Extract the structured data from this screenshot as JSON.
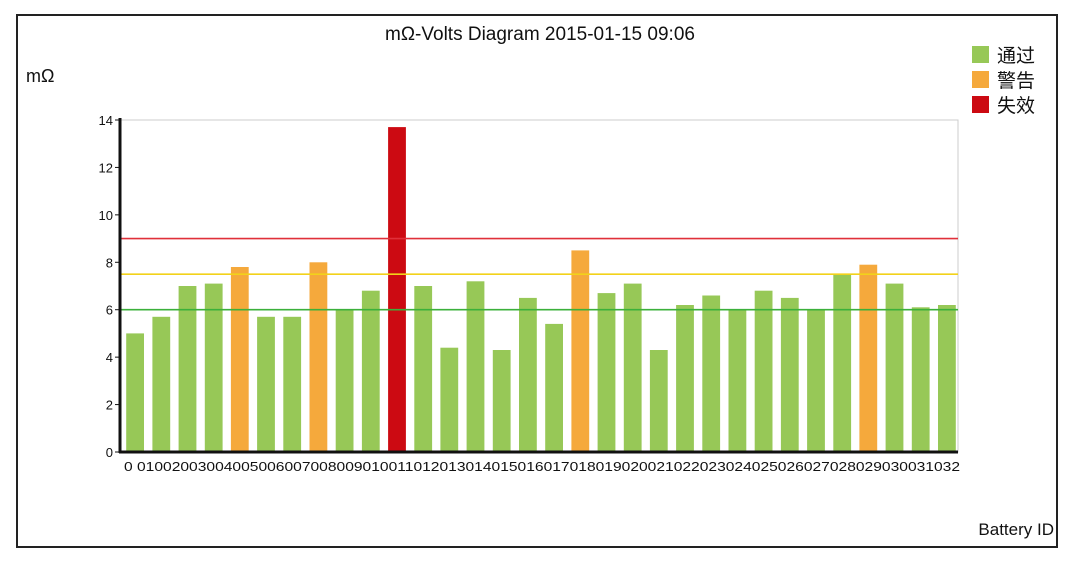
{
  "chart_data": {
    "type": "bar",
    "title": "mΩ-Volts Diagram 2015-01-15 09:06",
    "ylabel": "mΩ",
    "xlabel": "Battery ID",
    "ylim": [
      0,
      14
    ],
    "yticks": [
      0,
      2,
      4,
      6,
      8,
      10,
      12,
      14
    ],
    "categories": [
      "001",
      "002",
      "003",
      "004",
      "005",
      "006",
      "007",
      "008",
      "009",
      "010",
      "011",
      "012",
      "013",
      "014",
      "015",
      "016",
      "017",
      "018",
      "019",
      "020",
      "021",
      "022",
      "023",
      "024",
      "025",
      "026",
      "027",
      "028",
      "029",
      "030",
      "031",
      "032"
    ],
    "x_tick_label_text": "0 01002003004005006007008009010011012013014015016017018019020021022023024025026027028029030031032",
    "values": [
      5.0,
      5.7,
      7.0,
      7.1,
      7.8,
      5.7,
      5.7,
      8.0,
      6.0,
      6.8,
      13.7,
      7.0,
      4.4,
      7.2,
      4.3,
      6.5,
      5.4,
      8.5,
      6.7,
      7.1,
      4.3,
      6.2,
      6.6,
      6.0,
      6.8,
      6.5,
      6.0,
      7.5,
      7.9,
      7.1,
      6.1,
      6.2
    ],
    "status": [
      "pass",
      "pass",
      "pass",
      "pass",
      "warn",
      "pass",
      "pass",
      "warn",
      "pass",
      "pass",
      "fail",
      "pass",
      "pass",
      "pass",
      "pass",
      "pass",
      "pass",
      "warn",
      "pass",
      "pass",
      "pass",
      "pass",
      "pass",
      "pass",
      "pass",
      "pass",
      "pass",
      "pass",
      "warn",
      "pass",
      "pass",
      "pass"
    ],
    "thresholds": [
      {
        "value": 6.0,
        "color": "#3bb03b"
      },
      {
        "value": 7.5,
        "color": "#f2d21a"
      },
      {
        "value": 9.0,
        "color": "#e0303a"
      }
    ],
    "legend": [
      {
        "key": "pass",
        "label": "通过",
        "color": "#97c857"
      },
      {
        "key": "warn",
        "label": "警告",
        "color": "#f5a93c"
      },
      {
        "key": "fail",
        "label": "失效",
        "color": "#cc0a12"
      }
    ],
    "legend_position": "top-right",
    "grid": false
  }
}
